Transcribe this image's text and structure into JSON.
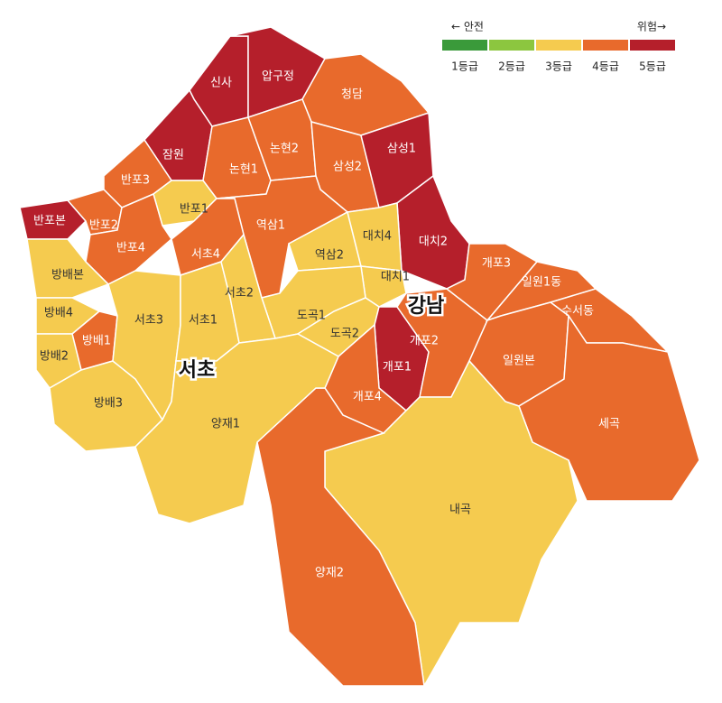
{
  "legend": {
    "safe": "← 안전",
    "danger": "위험→",
    "levels": [
      {
        "label": "1등급",
        "color": "#3a9a3a"
      },
      {
        "label": "2등급",
        "color": "#8cc63f"
      },
      {
        "label": "3등급",
        "color": "#f5cb4f"
      },
      {
        "label": "4등급",
        "color": "#e86a2c"
      },
      {
        "label": "5등급",
        "color": "#b51f2b"
      }
    ]
  },
  "districts": [
    {
      "label": "서초"
    },
    {
      "label": "강남"
    }
  ],
  "regions": [
    {
      "label": "신사",
      "color": "#b51f2b"
    },
    {
      "label": "압구정",
      "color": "#b51f2b"
    },
    {
      "label": "청담",
      "color": "#e86a2c"
    },
    {
      "label": "잠원",
      "color": "#b51f2b"
    },
    {
      "label": "논현1",
      "color": "#e86a2c"
    },
    {
      "label": "논현2",
      "color": "#e86a2c"
    },
    {
      "label": "삼성2",
      "color": "#e86a2c"
    },
    {
      "label": "삼성1",
      "color": "#b51f2b"
    },
    {
      "label": "대치2",
      "color": "#b51f2b"
    },
    {
      "label": "역삼1",
      "color": "#e86a2c"
    },
    {
      "label": "역삼2",
      "color": "#f5cb4f"
    },
    {
      "label": "대치4",
      "color": "#f5cb4f"
    },
    {
      "label": "대치1",
      "color": "#f5cb4f"
    },
    {
      "label": "도곡1",
      "color": "#f5cb4f"
    },
    {
      "label": "도곡2",
      "color": "#f5cb4f"
    },
    {
      "label": "개포1",
      "color": "#b51f2b"
    },
    {
      "label": "개포4",
      "color": "#e86a2c"
    },
    {
      "label": "개포2",
      "color": "#e86a2c"
    },
    {
      "label": "개포3",
      "color": "#e86a2c"
    },
    {
      "label": "일원1동",
      "color": "#e86a2c"
    },
    {
      "label": "수서동",
      "color": "#e86a2c"
    },
    {
      "label": "일원본",
      "color": "#e86a2c"
    },
    {
      "label": "세곡",
      "color": "#e86a2c"
    },
    {
      "label": "내곡",
      "color": "#f5cb4f"
    },
    {
      "label": "양재2",
      "color": "#e86a2c"
    },
    {
      "label": "반포본",
      "color": "#b51f2b"
    },
    {
      "label": "반포3",
      "color": "#e86a2c"
    },
    {
      "label": "반포2",
      "color": "#e86a2c"
    },
    {
      "label": "반포1",
      "color": "#f5cb4f"
    },
    {
      "label": "반포4",
      "color": "#e86a2c"
    },
    {
      "label": "서초4",
      "color": "#e86a2c"
    },
    {
      "label": "방배본",
      "color": "#f5cb4f"
    },
    {
      "label": "방배4",
      "color": "#f5cb4f"
    },
    {
      "label": "방배1",
      "color": "#e86a2c"
    },
    {
      "label": "방배2",
      "color": "#f5cb4f"
    },
    {
      "label": "방배3",
      "color": "#f5cb4f"
    },
    {
      "label": "서초3",
      "color": "#f5cb4f"
    },
    {
      "label": "서초1",
      "color": "#f5cb4f"
    },
    {
      "label": "서초2",
      "color": "#f5cb4f"
    },
    {
      "label": "양재1",
      "color": "#f5cb4f"
    }
  ]
}
